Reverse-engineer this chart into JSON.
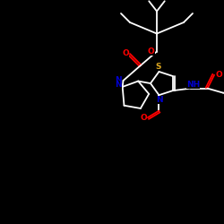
{
  "bg_color": "#000000",
  "bond_color": "#ffffff",
  "atom_colors": {
    "O": "#ff0000",
    "N": "#0000cd",
    "S": "#daa520",
    "H": "#ffffff",
    "C": "#ffffff"
  },
  "figsize": [
    2.5,
    2.5
  ],
  "dpi": 100
}
